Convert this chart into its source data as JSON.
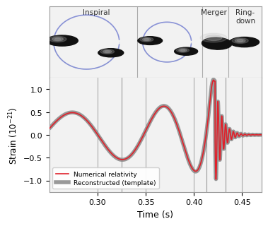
{
  "xlabel": "Time (s)",
  "ylabel": "Strain $(10^{-21})$",
  "xlim": [
    0.25,
    0.47
  ],
  "ylim": [
    -1.25,
    1.25
  ],
  "xticks": [
    0.3,
    0.35,
    0.4,
    0.45
  ],
  "yticks": [
    -1.0,
    -0.5,
    0.0,
    0.5,
    1.0
  ],
  "line_color_nr": "#e0202a",
  "line_color_template": "#888888",
  "template_linewidth": 4,
  "nr_linewidth": 1.2,
  "vline_color": "#aaaaaa",
  "phase_vlines": [
    0.325,
    0.413,
    0.433
  ],
  "background_color": "#f2f2f2",
  "inspiral_label": "Inspiral",
  "merger_label": "Merger",
  "ringdown_label": "Ring-\ndown",
  "legend_label_nr": "Numerical relativity",
  "legend_label_tmpl": "Reconstructed (template)"
}
